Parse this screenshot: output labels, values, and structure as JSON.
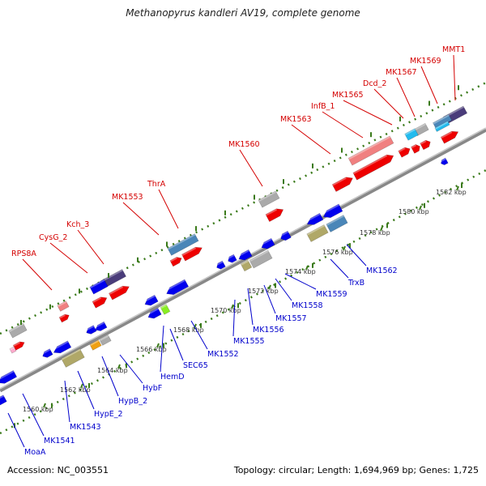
{
  "title": "Methanopyrus kandleri AV19, complete genome",
  "footer": {
    "accession": "Accession: NC_003551",
    "topology": "Topology: circular; Length: 1,694,969 bp; Genes: 1,725"
  },
  "colors": {
    "forward_cds": "#ee0000",
    "reverse_cds": "#0000ee",
    "rrna": "#f08080",
    "trna": "#aaaaaa",
    "misc": "#b0a868",
    "steel": "#4a86b8",
    "purple": "#4a3c7a",
    "cyan": "#22bbee",
    "orange": "#f0a010",
    "lime": "#88ee22",
    "tick": "#3a7a1a",
    "backbone": "#909090"
  },
  "ticks": [
    {
      "label": "1560 kbp"
    },
    {
      "label": "1562 kbp"
    },
    {
      "label": "1564 kbp"
    },
    {
      "label": "1566 kbp"
    },
    {
      "label": "1568 kbp"
    },
    {
      "label": "1570 kbp"
    },
    {
      "label": "1572 kbp"
    },
    {
      "label": "1574 kbp"
    },
    {
      "label": "1576 kbp"
    },
    {
      "label": "1578 kbp"
    },
    {
      "label": "1580 kbp"
    },
    {
      "label": "1582 kbp"
    }
  ],
  "forward_labels": [
    {
      "text": "RPS8A"
    },
    {
      "text": "CysG_2"
    },
    {
      "text": "Kch_3"
    },
    {
      "text": "MK1553"
    },
    {
      "text": "ThrA"
    },
    {
      "text": "MK1560"
    },
    {
      "text": "MK1563"
    },
    {
      "text": "InfB_1"
    },
    {
      "text": "MK1565"
    },
    {
      "text": "Dcd_2"
    },
    {
      "text": "MK1567"
    },
    {
      "text": "MK1569"
    },
    {
      "text": "MMT1"
    }
  ],
  "reverse_labels": [
    {
      "text": "MoaA"
    },
    {
      "text": "MK1541"
    },
    {
      "text": "MK1543"
    },
    {
      "text": "HypE_2"
    },
    {
      "text": "HypB_2"
    },
    {
      "text": "HybF"
    },
    {
      "text": "HemD"
    },
    {
      "text": "SEC65"
    },
    {
      "text": "MK1552"
    },
    {
      "text": "MK1555"
    },
    {
      "text": "MK1556"
    },
    {
      "text": "MK1557"
    },
    {
      "text": "MK1558"
    },
    {
      "text": "MK1559"
    },
    {
      "text": "TrxB"
    },
    {
      "text": "MK1562"
    }
  ]
}
